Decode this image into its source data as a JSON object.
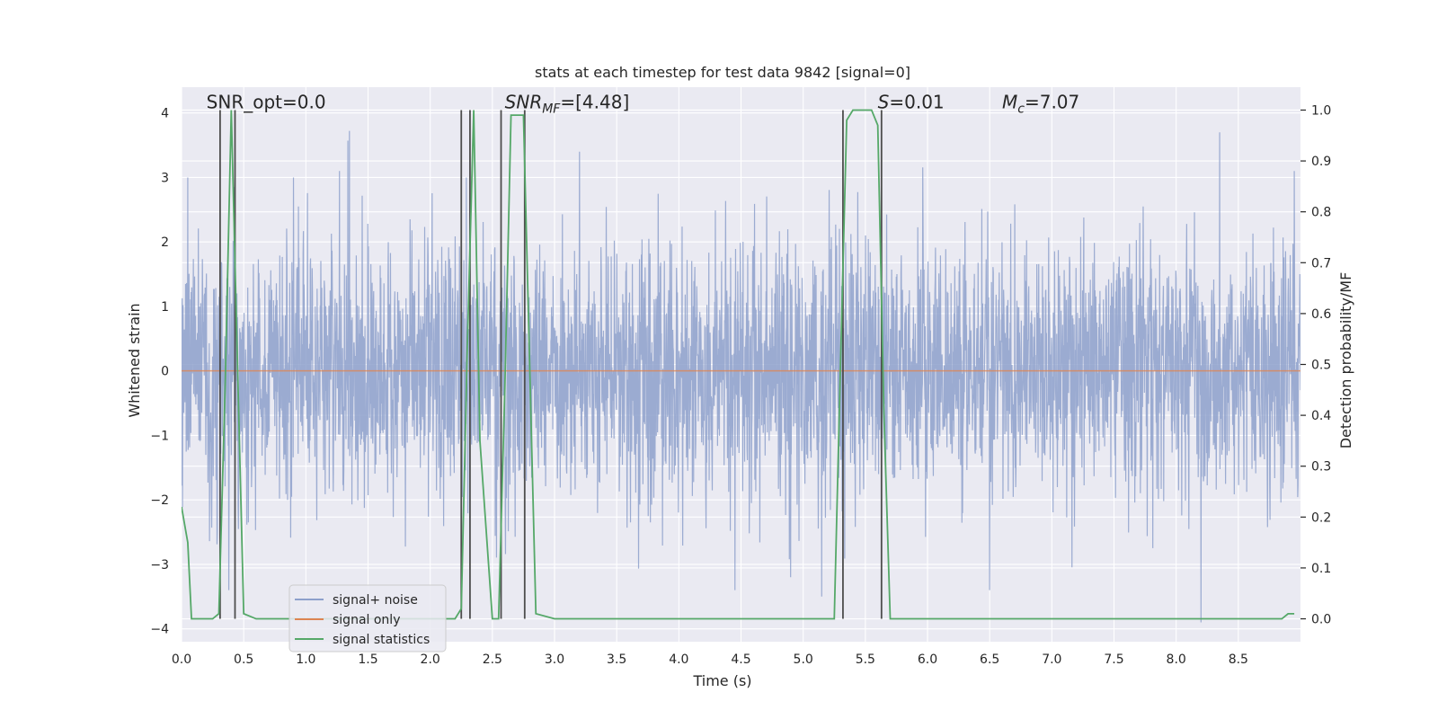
{
  "chart_data": {
    "type": "line",
    "title": "stats at each timestep for test data 9842 [signal=0]",
    "xlabel": "Time (s)",
    "ylabel": "Whitened strain",
    "y2label": "Detection probability/MF",
    "xlim": [
      0.0,
      9.0
    ],
    "ylim": [
      -4.2,
      4.4
    ],
    "y2lim": [
      -0.045,
      1.045
    ],
    "xticks": [
      0.0,
      0.5,
      1.0,
      1.5,
      2.0,
      2.5,
      3.0,
      3.5,
      4.0,
      4.5,
      5.0,
      5.5,
      6.0,
      6.5,
      7.0,
      7.5,
      8.0,
      8.5
    ],
    "xtick_labels": [
      "0.0",
      "0.5",
      "1.0",
      "1.5",
      "2.0",
      "2.5",
      "3.0",
      "3.5",
      "4.0",
      "4.5",
      "5.0",
      "5.5",
      "6.0",
      "6.5",
      "7.0",
      "7.5",
      "8.0",
      "8.5"
    ],
    "yticks": [
      -4,
      -3,
      -2,
      -1,
      0,
      1,
      2,
      3,
      4
    ],
    "ytick_labels": [
      "−4",
      "−3",
      "−2",
      "−1",
      "0",
      "1",
      "2",
      "3",
      "4"
    ],
    "y2ticks": [
      0.0,
      0.1,
      0.2,
      0.3,
      0.4,
      0.5,
      0.6,
      0.7,
      0.8,
      0.9,
      1.0
    ],
    "y2tick_labels": [
      "0.0",
      "0.1",
      "0.2",
      "0.3",
      "0.4",
      "0.5",
      "0.6",
      "0.7",
      "0.8",
      "0.9",
      "1.0"
    ],
    "grid": true,
    "legend_position": "lower-left",
    "annotations": [
      {
        "text": "SNR_opt=0.0",
        "x": 0.2,
        "y": 4.1
      },
      {
        "text": "SNR_MF=[4.48]",
        "x": 2.6,
        "y": 4.1
      },
      {
        "text": "S=0.01",
        "x": 5.6,
        "y": 4.1
      },
      {
        "text": "M_c=7.07",
        "x": 6.6,
        "y": 4.1
      }
    ],
    "series": [
      {
        "name": "signal+ noise",
        "color": "#8da0cb",
        "kind": "noise",
        "amplitude_sd": 1.0,
        "notable_peaks": [
          {
            "x": 0.05,
            "y": 3.0
          },
          {
            "x": 0.38,
            "y": -3.4
          },
          {
            "x": 0.9,
            "y": 3.0
          },
          {
            "x": 1.27,
            "y": 3.1
          },
          {
            "x": 2.29,
            "y": 3.0
          },
          {
            "x": 3.2,
            "y": 3.4
          },
          {
            "x": 4.45,
            "y": -3.4
          },
          {
            "x": 4.9,
            "y": -3.2
          },
          {
            "x": 5.15,
            "y": -3.5
          },
          {
            "x": 6.5,
            "y": -3.4
          },
          {
            "x": 8.2,
            "y": -3.9
          },
          {
            "x": 8.35,
            "y": 3.7
          },
          {
            "x": 8.95,
            "y": 3.1
          }
        ]
      },
      {
        "name": "signal only",
        "color": "#dd8452",
        "kind": "flat",
        "value": 0.0
      },
      {
        "name": "signal statistics",
        "color": "#55a868",
        "kind": "probability",
        "x": [
          0.0,
          0.05,
          0.08,
          0.25,
          0.3,
          0.35,
          0.4,
          0.45,
          0.5,
          0.6,
          1.0,
          2.1,
          2.2,
          2.25,
          2.3,
          2.35,
          2.4,
          2.5,
          2.55,
          2.6,
          2.65,
          2.75,
          2.8,
          2.85,
          3.0,
          4.0,
          5.0,
          5.25,
          5.3,
          5.35,
          5.4,
          5.55,
          5.6,
          5.65,
          5.7,
          6.0,
          7.0,
          8.0,
          8.5,
          8.85,
          8.9,
          8.95
        ],
        "y": [
          0.22,
          0.15,
          0.0,
          0.0,
          0.01,
          0.45,
          1.0,
          0.5,
          0.01,
          0.0,
          0.0,
          0.0,
          0.0,
          0.02,
          0.55,
          1.0,
          0.35,
          0.0,
          0.0,
          0.45,
          0.99,
          0.99,
          0.5,
          0.01,
          0.0,
          0.0,
          0.0,
          0.0,
          0.5,
          0.98,
          1.0,
          1.0,
          0.97,
          0.4,
          0.0,
          0.0,
          0.0,
          0.0,
          0.0,
          0.0,
          0.01,
          0.01
        ]
      }
    ],
    "vertical_lines": {
      "color": "#4d4d4d",
      "positions": [
        0.31,
        0.43,
        2.25,
        2.32,
        2.57,
        2.76,
        5.32,
        5.63
      ],
      "y2_top": 1.0,
      "y2_bottom": 0.0
    },
    "legend": [
      "signal+ noise",
      "signal only",
      "signal statistics"
    ]
  }
}
